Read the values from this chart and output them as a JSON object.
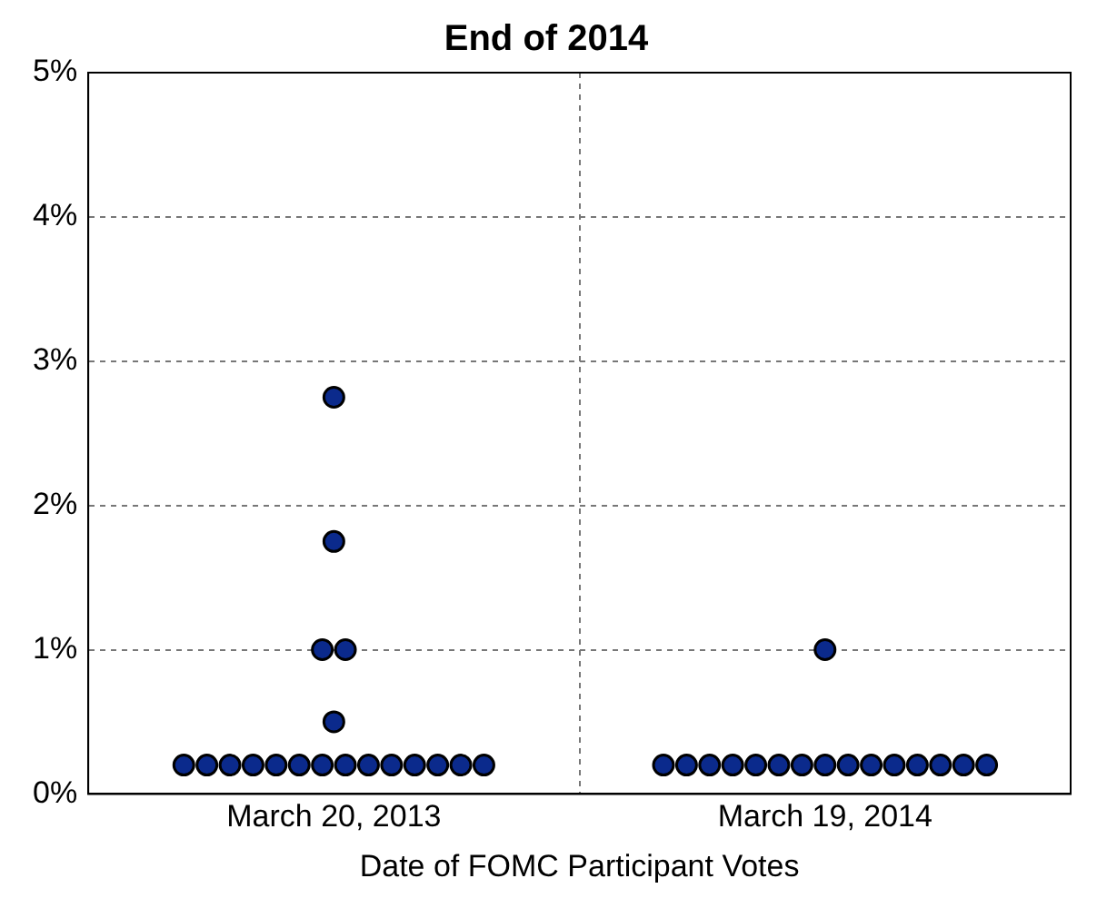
{
  "chart_data": {
    "type": "scatter",
    "title": "End of 2014",
    "xlabel": "Date of FOMC Participant Votes",
    "categories": [
      "March 20, 2013",
      "March 19, 2014"
    ],
    "series": [
      {
        "color": "#0b2a8c",
        "x": [
          "March 20, 2013",
          "March 20, 2013",
          "March 20, 2013",
          "March 20, 2013",
          "March 20, 2013",
          "March 20, 2013",
          "March 20, 2013",
          "March 20, 2013",
          "March 20, 2013",
          "March 20, 2013",
          "March 20, 2013",
          "March 20, 2013",
          "March 20, 2013",
          "March 20, 2013",
          "March 20, 2013",
          "March 20, 2013",
          "March 20, 2013",
          "March 20, 2013",
          "March 20, 2013",
          "March 19, 2014",
          "March 19, 2014",
          "March 19, 2014",
          "March 19, 2014",
          "March 19, 2014",
          "March 19, 2014",
          "March 19, 2014",
          "March 19, 2014",
          "March 19, 2014",
          "March 19, 2014",
          "March 19, 2014",
          "March 19, 2014",
          "March 19, 2014",
          "March 19, 2014",
          "March 19, 2014",
          "March 19, 2014"
        ],
        "values": [
          0.2,
          0.2,
          0.2,
          0.2,
          0.2,
          0.2,
          0.2,
          0.2,
          0.2,
          0.2,
          0.2,
          0.2,
          0.2,
          0.2,
          0.5,
          1,
          1,
          1.75,
          2.75,
          0.2,
          0.2,
          0.2,
          0.2,
          0.2,
          0.2,
          0.2,
          0.2,
          0.2,
          0.2,
          0.2,
          0.2,
          0.2,
          0.2,
          0.2,
          1
        ]
      }
    ],
    "ylim": [
      0,
      5
    ],
    "yticks": [
      {
        "value": 0,
        "label": "0%"
      },
      {
        "value": 1,
        "label": "1%"
      },
      {
        "value": 2,
        "label": "2%"
      },
      {
        "value": 3,
        "label": "3%"
      },
      {
        "value": 4,
        "label": "4%"
      },
      {
        "value": 5,
        "label": "5%"
      }
    ],
    "grid": true,
    "marker": "circle",
    "legend": false
  }
}
